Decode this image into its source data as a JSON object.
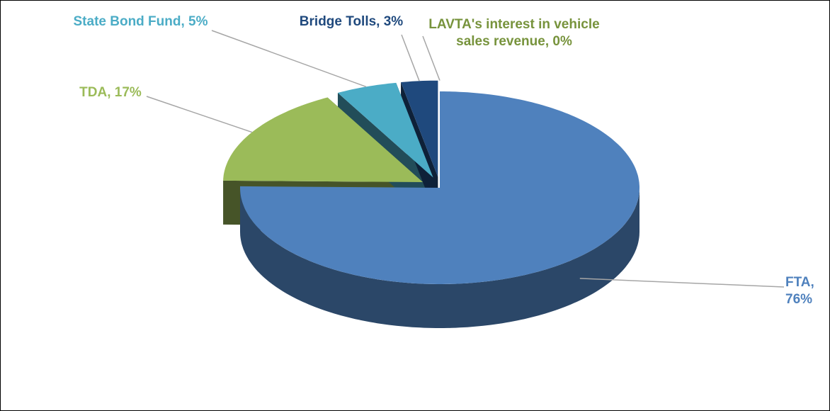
{
  "chart_data": {
    "type": "pie3d",
    "values": [
      76,
      17,
      5,
      3,
      0
    ],
    "value_labels": [
      "FTA, 76%",
      "TDA, 17%",
      "State Bond Fund, 5%",
      "Bridge Tolls, 3%",
      "LAVTA's interest in vehicle sales revenue, 0%"
    ],
    "colors": [
      "#4f81bd",
      "#9bbb59",
      "#4bacc6",
      "#1f497d",
      "#77933c"
    ]
  }
}
